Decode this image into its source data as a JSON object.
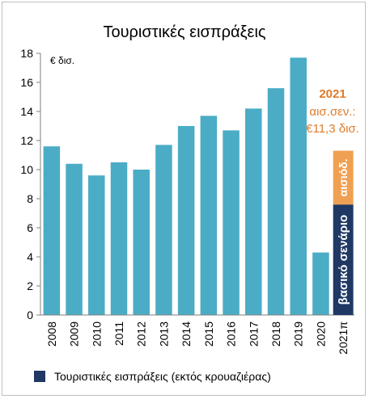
{
  "chart_data": {
    "type": "bar",
    "title": "Τουριστικές εισπράξεις",
    "unit_label": "€ δισ.",
    "categories": [
      "2008",
      "2009",
      "2010",
      "2011",
      "2012",
      "2013",
      "2014",
      "2015",
      "2016",
      "2017",
      "2018",
      "2019",
      "2020",
      "2021π"
    ],
    "series": [
      {
        "name": "Τουριστικές εισπράξεις (εκτός κρουαζιέρας)",
        "color": "#4bacc6",
        "values": [
          11.6,
          10.4,
          9.6,
          10.5,
          10.0,
          11.7,
          13.0,
          13.7,
          12.7,
          14.2,
          15.6,
          17.7,
          4.3,
          null
        ]
      }
    ],
    "projection_2021": {
      "base_label": "βασικό σενάριο",
      "base_value": 7.6,
      "base_color": "#1f3864",
      "optimistic_label": "αισιόδ.",
      "optimistic_value": 11.3,
      "optimistic_color": "#f0a052"
    },
    "annotation": {
      "year": "2021",
      "line1": "αισ.σεν.:",
      "line2": "€11,3 δισ."
    },
    "ylim": [
      0,
      18
    ],
    "yticks": [
      0,
      2,
      4,
      6,
      8,
      10,
      12,
      14,
      16,
      18
    ],
    "grid": false,
    "legend": {
      "label": "Τουριστικές εισπράξεις (εκτός κρουαζιέρας)",
      "swatch_color": "#1f3864",
      "position": "bottom"
    }
  }
}
